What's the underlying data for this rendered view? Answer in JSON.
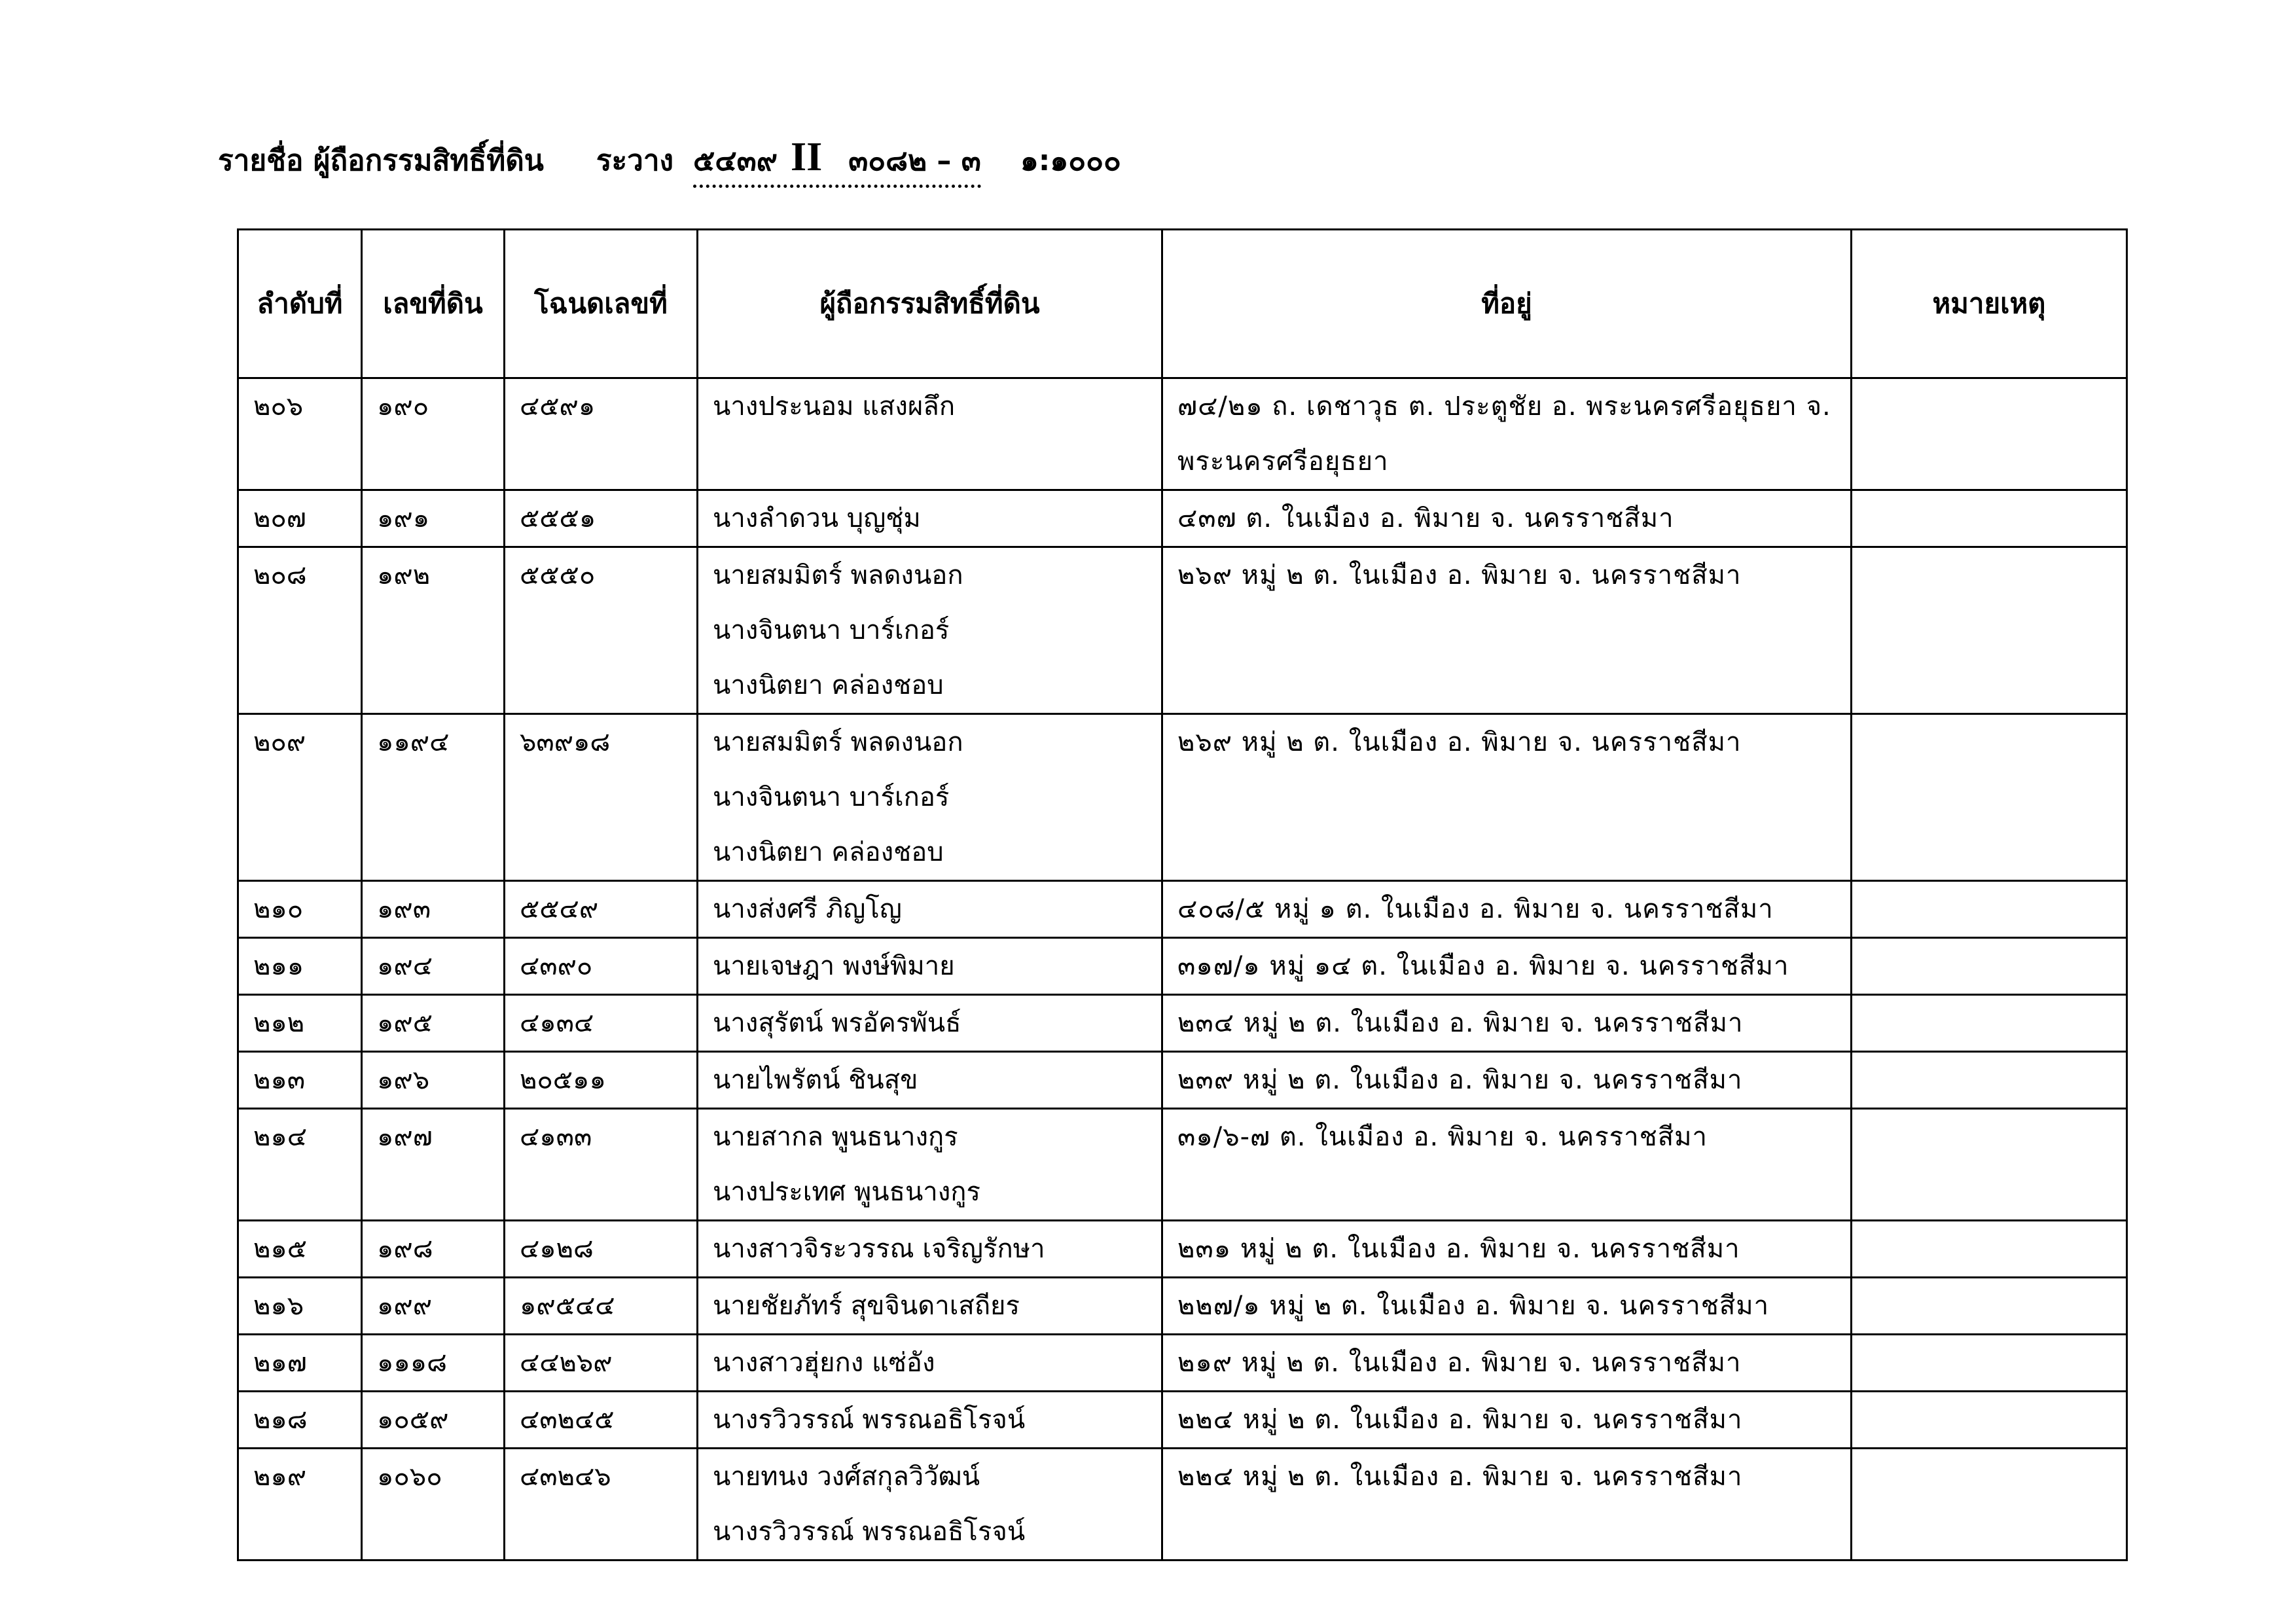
{
  "title": {
    "label": "รายชื่อ ผู้ถือกรรมสิทธิ์ที่ดิน",
    "sheet_label": "ระวาง",
    "sheet_number": "๕๔๓๙",
    "sheet_roman": "II",
    "sheet_sub": "๓๐๘๒ – ๓",
    "scale": "๑:๑๐๐๐"
  },
  "table": {
    "headers": [
      "ลำดับที่",
      "เลขที่ดิน",
      "โฉนดเลขที่",
      "ผู้ถือกรรมสิทธิ์ที่ดิน",
      "ที่อยู่",
      "หมายเหตุ"
    ],
    "rows": [
      {
        "no": "๒๐๖",
        "parcel": "๑๙๐",
        "deed": "๔๕๙๑",
        "owners": [
          "นางประนอม  แสงผลึก"
        ],
        "address": [
          "๗๔/๒๑ ถ. เดชาวุธ ต. ประตูชัย อ. พระนครศรีอยุธยา จ.",
          "พระนครศรีอยุธยา"
        ],
        "note": ""
      },
      {
        "no": "๒๐๗",
        "parcel": "๑๙๑",
        "deed": "๕๕๕๑",
        "owners": [
          "นางลำดวน  บุญชุ่ม"
        ],
        "address": [
          "๔๓๗ ต. ในเมือง อ. พิมาย จ. นครราชสีมา"
        ],
        "note": ""
      },
      {
        "no": "๒๐๘",
        "parcel": "๑๙๒",
        "deed": "๕๕๕๐",
        "owners": [
          "นายสมมิตร์  พลดงนอก",
          "นางจินตนา  บาร์เกอร์",
          "นางนิตยา  คล่องชอบ"
        ],
        "address": [
          "๒๖๙ หมู่ ๒ ต. ในเมือง อ. พิมาย จ. นครราชสีมา"
        ],
        "note": ""
      },
      {
        "no": "๒๐๙",
        "parcel": "๑๑๙๔",
        "deed": "๖๓๙๑๘",
        "owners": [
          "นายสมมิตร์  พลดงนอก",
          "นางจินตนา  บาร์เกอร์",
          "นางนิตยา  คล่องชอบ"
        ],
        "address": [
          "๒๖๙ หมู่ ๒ ต. ในเมือง อ. พิมาย จ. นครราชสีมา"
        ],
        "note": ""
      },
      {
        "no": "๒๑๐",
        "parcel": "๑๙๓",
        "deed": "๕๕๔๙",
        "owners": [
          "นางส่งศรี  ภิญโญ"
        ],
        "address": [
          "๔๐๘/๕ หมู่ ๑ ต. ในเมือง อ. พิมาย จ. นครราชสีมา"
        ],
        "note": ""
      },
      {
        "no": "๒๑๑",
        "parcel": "๑๙๔",
        "deed": "๔๓๙๐",
        "owners": [
          "นายเจษฎา  พงษ์พิมาย"
        ],
        "address": [
          "๓๑๗/๑ หมู่ ๑๔ ต. ในเมือง อ. พิมาย จ. นครราชสีมา"
        ],
        "note": ""
      },
      {
        "no": "๒๑๒",
        "parcel": "๑๙๕",
        "deed": "๔๑๓๔",
        "owners": [
          "นางสุรัตน์  พรอัครพันธ์"
        ],
        "address": [
          "๒๓๔ หมู่ ๒ ต. ในเมือง อ. พิมาย จ. นครราชสีมา"
        ],
        "note": ""
      },
      {
        "no": "๒๑๓",
        "parcel": "๑๙๖",
        "deed": "๒๐๕๑๑",
        "owners": [
          "นายไพรัตน์  ชินสุข"
        ],
        "address": [
          "๒๓๙ หมู่ ๒ ต. ในเมือง อ. พิมาย จ. นครราชสีมา"
        ],
        "note": ""
      },
      {
        "no": "๒๑๔",
        "parcel": "๑๙๗",
        "deed": "๔๑๓๓",
        "owners": [
          "นายสากล  พูนธนางกูร",
          "นางประเทศ  พูนธนางกูร"
        ],
        "address": [
          "๓๑/๖-๗ ต. ในเมือง อ. พิมาย จ. นครราชสีมา"
        ],
        "note": ""
      },
      {
        "no": "๒๑๕",
        "parcel": "๑๙๘",
        "deed": "๔๑๒๘",
        "owners": [
          "นางสาวจิระวรรณ  เจริญรักษา"
        ],
        "address": [
          "๒๓๑ หมู่ ๒ ต. ในเมือง อ. พิมาย จ. นครราชสีมา"
        ],
        "note": ""
      },
      {
        "no": "๒๑๖",
        "parcel": "๑๙๙",
        "deed": "๑๙๕๔๔",
        "owners": [
          "นายชัยภัทร์  สุขจินดาเสถียร"
        ],
        "address": [
          "๒๒๗/๑ หมู่ ๒ ต. ในเมือง อ. พิมาย จ. นครราชสีมา"
        ],
        "note": ""
      },
      {
        "no": "๒๑๗",
        "parcel": "๑๑๑๘",
        "deed": "๔๔๒๖๙",
        "owners": [
          "นางสาวฮุ่ยกง  แซ่อัง"
        ],
        "address": [
          "๒๑๙ หมู่ ๒ ต. ในเมือง อ. พิมาย จ. นครราชสีมา"
        ],
        "note": ""
      },
      {
        "no": "๒๑๘",
        "parcel": "๑๐๕๙",
        "deed": "๔๓๒๔๕",
        "owners": [
          "นางรวิวรรณ์  พรรณอธิโรจน์"
        ],
        "address": [
          "๒๒๔ หมู่ ๒ ต. ในเมือง อ. พิมาย จ. นครราชสีมา"
        ],
        "note": ""
      },
      {
        "no": "๒๑๙",
        "parcel": "๑๐๖๐",
        "deed": "๔๓๒๔๖",
        "owners": [
          "นายทนง  วงศ์สกุลวิวัฒน์",
          "นางรวิวรรณ์  พรรณอธิโรจน์"
        ],
        "address": [
          "๒๒๔ หมู่ ๒ ต. ในเมือง อ. พิมาย จ. นครราชสีมา"
        ],
        "note": ""
      }
    ]
  }
}
